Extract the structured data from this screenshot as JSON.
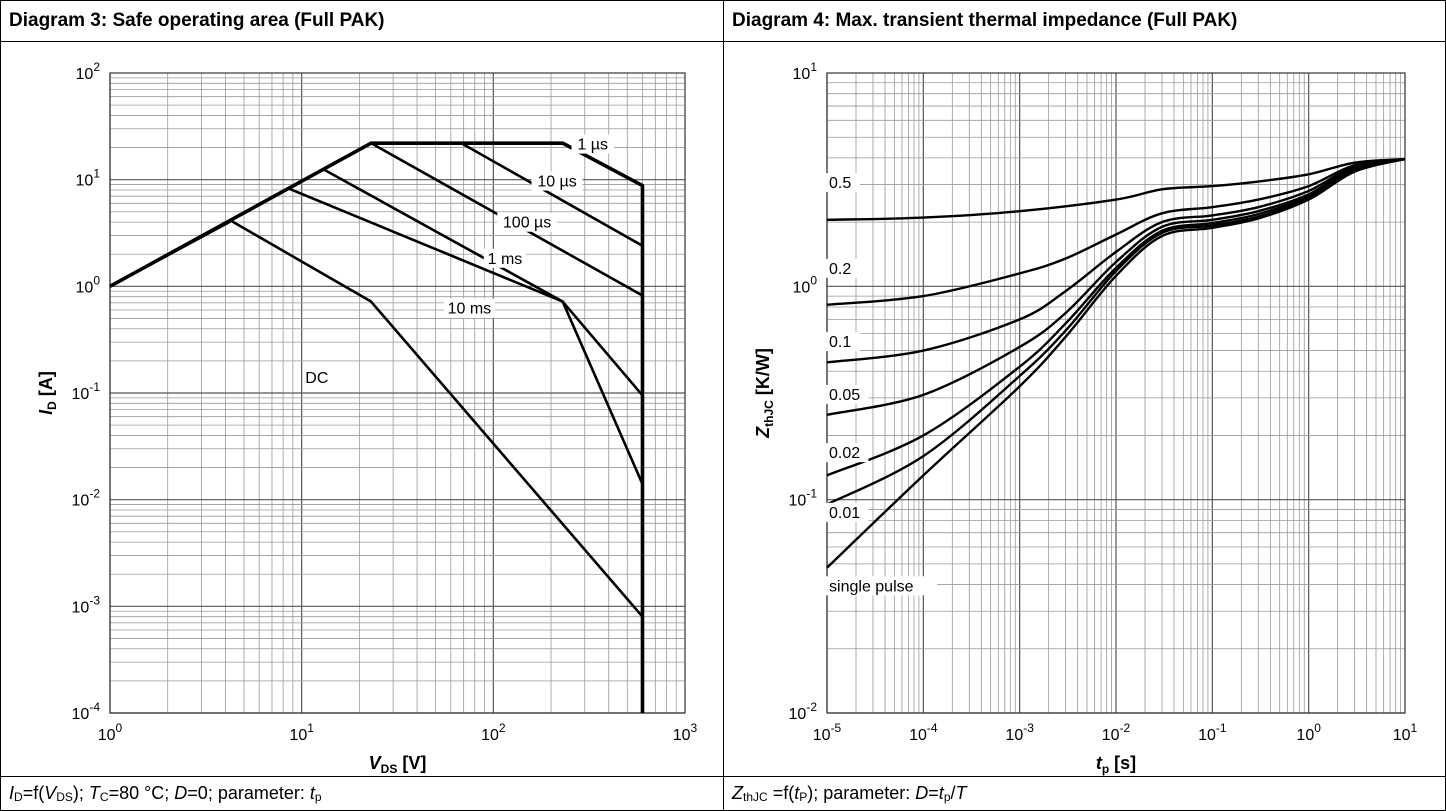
{
  "chart_data": [
    {
      "type": "line",
      "title": "Diagram 3: Safe operating area (Full PAK)",
      "xlabel": "VDS [V]",
      "ylabel": "ID [A]",
      "xscale": "log",
      "yscale": "log",
      "xlim": [
        1,
        1000
      ],
      "ylim": [
        0.0001,
        100
      ],
      "grid": true,
      "x_tick_labels": [
        "10^0",
        "10^1",
        "10^2",
        "10^3"
      ],
      "y_tick_labels": [
        "10^-4",
        "10^-3",
        "10^-2",
        "10^-1",
        "10^0",
        "10^1",
        "10^2"
      ],
      "caption": "ID=f(VDS); TC=80 °C; D=0; parameter: tp",
      "series": [
        {
          "name": "1 µs",
          "x": [
            1,
            23,
            230,
            600,
            600
          ],
          "y": [
            1,
            22,
            22,
            8.8,
            0.0001
          ]
        },
        {
          "name": "10 µs",
          "x": [
            1,
            23,
            68,
            600
          ],
          "y": [
            1,
            22,
            22,
            2.4
          ]
        },
        {
          "name": "100 µs",
          "x": [
            1,
            23,
            600
          ],
          "y": [
            1,
            22,
            0.82
          ]
        },
        {
          "name": "1 ms",
          "x": [
            1,
            13,
            230,
            600
          ],
          "y": [
            1,
            12.5,
            0.72,
            0.095
          ]
        },
        {
          "name": "10 ms",
          "x": [
            1,
            8.5,
            230,
            600
          ],
          "y": [
            1,
            8.3,
            0.72,
            0.014
          ]
        },
        {
          "name": "DC",
          "x": [
            1,
            4.3,
            23,
            600
          ],
          "y": [
            1,
            4.1,
            0.72,
            0.0008
          ]
        }
      ],
      "annotations": [
        "1 µs",
        "10 µs",
        "100 µs",
        "1 ms",
        "10 ms",
        "DC"
      ]
    },
    {
      "type": "line",
      "title": "Diagram 4: Max. transient thermal impedance (Full PAK)",
      "xlabel": "tp [s]",
      "ylabel": "ZthJC [K/W]",
      "xscale": "log",
      "yscale": "log",
      "xlim": [
        1e-05,
        10
      ],
      "ylim": [
        0.01,
        10
      ],
      "grid": true,
      "x_tick_labels": [
        "10^-5",
        "10^-4",
        "10^-3",
        "10^-2",
        "10^-1",
        "10^0",
        "10^1"
      ],
      "y_tick_labels": [
        "10^-2",
        "10^-1",
        "10^0",
        "10^1"
      ],
      "caption": "ZthJC =f(tP); parameter: D=tp/T",
      "series": [
        {
          "name": "0.5",
          "x": [
            1e-05,
            0.0001,
            0.001,
            0.01,
            0.03,
            0.1,
            0.3,
            1,
            3,
            10
          ],
          "y": [
            2.05,
            2.1,
            2.25,
            2.55,
            2.85,
            2.95,
            3.1,
            3.35,
            3.8,
            3.95
          ]
        },
        {
          "name": "0.2",
          "x": [
            1e-05,
            0.0001,
            0.001,
            0.003,
            0.01,
            0.03,
            0.1,
            0.3,
            1,
            3,
            10
          ],
          "y": [
            0.82,
            0.9,
            1.15,
            1.35,
            1.75,
            2.2,
            2.35,
            2.55,
            2.95,
            3.7,
            3.95
          ]
        },
        {
          "name": "0.1",
          "x": [
            1e-05,
            0.0001,
            0.001,
            0.003,
            0.01,
            0.03,
            0.1,
            0.3,
            1,
            3,
            10
          ],
          "y": [
            0.44,
            0.5,
            0.7,
            0.95,
            1.45,
            2.0,
            2.15,
            2.35,
            2.8,
            3.65,
            3.95
          ]
        },
        {
          "name": "0.05",
          "x": [
            1e-05,
            0.0001,
            0.001,
            0.003,
            0.01,
            0.03,
            0.1,
            0.3,
            1,
            3,
            10
          ],
          "y": [
            0.25,
            0.31,
            0.52,
            0.75,
            1.3,
            1.9,
            2.05,
            2.25,
            2.7,
            3.6,
            3.95
          ]
        },
        {
          "name": "0.02",
          "x": [
            1e-05,
            0.0001,
            0.001,
            0.003,
            0.01,
            0.03,
            0.1,
            0.3,
            1,
            3,
            10
          ],
          "y": [
            0.13,
            0.2,
            0.42,
            0.67,
            1.22,
            1.82,
            1.98,
            2.18,
            2.65,
            3.55,
            3.95
          ]
        },
        {
          "name": "0.01",
          "x": [
            1e-05,
            0.0001,
            0.001,
            0.003,
            0.01,
            0.03,
            0.1,
            0.3,
            1,
            3,
            10
          ],
          "y": [
            0.095,
            0.16,
            0.38,
            0.62,
            1.18,
            1.78,
            1.93,
            2.12,
            2.6,
            3.5,
            3.95
          ]
        },
        {
          "name": "single pulse",
          "x": [
            1e-05,
            0.0001,
            0.001,
            0.003,
            0.01,
            0.03,
            0.1,
            0.3,
            1,
            3,
            10
          ],
          "y": [
            0.048,
            0.13,
            0.34,
            0.58,
            1.12,
            1.72,
            1.88,
            2.08,
            2.55,
            3.45,
            3.95
          ]
        }
      ],
      "annotations": [
        "0.5",
        "0.2",
        "0.1",
        "0.05",
        "0.02",
        "0.01",
        "single pulse"
      ]
    }
  ]
}
